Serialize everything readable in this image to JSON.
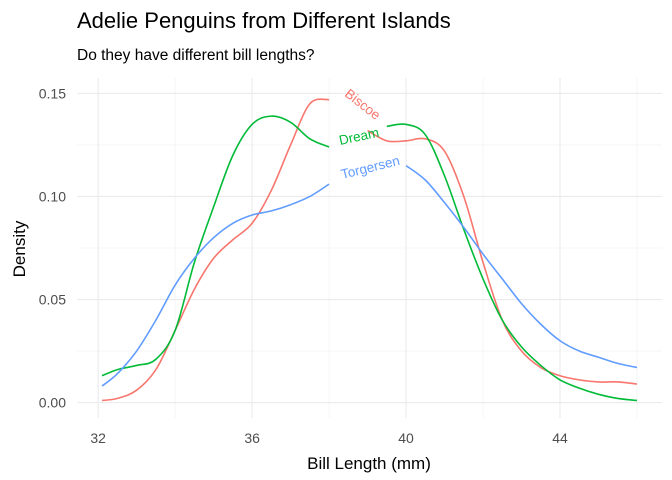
{
  "chart_data": {
    "type": "line",
    "title": "Adelie Penguins from Different Islands",
    "subtitle": "Do they have different bill lengths?",
    "xlabel": "Bill Length (mm)",
    "ylabel": "Density",
    "xlim": [
      32.1,
      46.0
    ],
    "ylim": [
      0,
      0.15
    ],
    "x_ticks": [
      32,
      36,
      40,
      44
    ],
    "x_tick_labels": [
      "32",
      "36",
      "40",
      "44"
    ],
    "y_ticks": [
      0,
      0.05,
      0.1,
      0.15
    ],
    "y_tick_labels": [
      "0.00",
      "0.05",
      "0.10",
      "0.15"
    ],
    "grid": true,
    "legend": "direct labels on curves",
    "series": [
      {
        "name": "Biscoe",
        "color": "#F8766D",
        "x": [
          32.1,
          32.5,
          33.0,
          33.5,
          34.0,
          34.5,
          35.0,
          35.5,
          36.0,
          36.5,
          37.0,
          37.5,
          38.0,
          38.5,
          39.0,
          39.5,
          40.0,
          40.5,
          41.0,
          41.5,
          42.0,
          42.5,
          43.0,
          43.5,
          44.0,
          44.5,
          45.0,
          45.5,
          46.0
        ],
        "y": [
          0.001,
          0.002,
          0.006,
          0.016,
          0.035,
          0.055,
          0.07,
          0.079,
          0.087,
          0.103,
          0.125,
          0.145,
          0.147,
          0.14,
          0.132,
          0.127,
          0.127,
          0.128,
          0.122,
          0.1,
          0.068,
          0.04,
          0.025,
          0.017,
          0.013,
          0.011,
          0.01,
          0.01,
          0.009
        ]
      },
      {
        "name": "Dream",
        "color": "#00BA38",
        "x": [
          32.1,
          32.5,
          33.0,
          33.5,
          34.0,
          34.5,
          35.0,
          35.5,
          36.0,
          36.5,
          37.0,
          37.5,
          38.0,
          38.5,
          39.0,
          39.5,
          40.0,
          40.5,
          41.0,
          41.5,
          42.0,
          42.5,
          43.0,
          43.5,
          44.0,
          44.5,
          45.0,
          45.5,
          46.0
        ],
        "y": [
          0.013,
          0.016,
          0.018,
          0.021,
          0.035,
          0.068,
          0.095,
          0.12,
          0.135,
          0.139,
          0.136,
          0.128,
          0.124,
          0.126,
          0.131,
          0.134,
          0.135,
          0.13,
          0.11,
          0.084,
          0.06,
          0.04,
          0.027,
          0.018,
          0.011,
          0.007,
          0.004,
          0.002,
          0.001
        ]
      },
      {
        "name": "Torgersen",
        "color": "#619CFF",
        "x": [
          32.1,
          32.5,
          33.0,
          33.5,
          34.0,
          34.5,
          35.0,
          35.5,
          36.0,
          36.5,
          37.0,
          37.5,
          38.0,
          38.5,
          39.0,
          39.5,
          40.0,
          40.5,
          41.0,
          41.5,
          42.0,
          42.5,
          43.0,
          43.5,
          44.0,
          44.5,
          45.0,
          45.5,
          46.0
        ],
        "y": [
          0.008,
          0.014,
          0.025,
          0.04,
          0.057,
          0.07,
          0.08,
          0.087,
          0.091,
          0.093,
          0.096,
          0.1,
          0.106,
          0.11,
          0.114,
          0.117,
          0.115,
          0.108,
          0.097,
          0.085,
          0.072,
          0.06,
          0.048,
          0.038,
          0.03,
          0.025,
          0.022,
          0.019,
          0.017
        ]
      }
    ],
    "labels": [
      {
        "series": "Biscoe",
        "text": "Biscoe",
        "x": 38.8,
        "y": 0.143
      },
      {
        "series": "Dream",
        "text": "Dream",
        "x": 38.8,
        "y": 0.127
      },
      {
        "series": "Torgersen",
        "text": "Torgersen",
        "x": 39.1,
        "y": 0.112
      }
    ]
  }
}
